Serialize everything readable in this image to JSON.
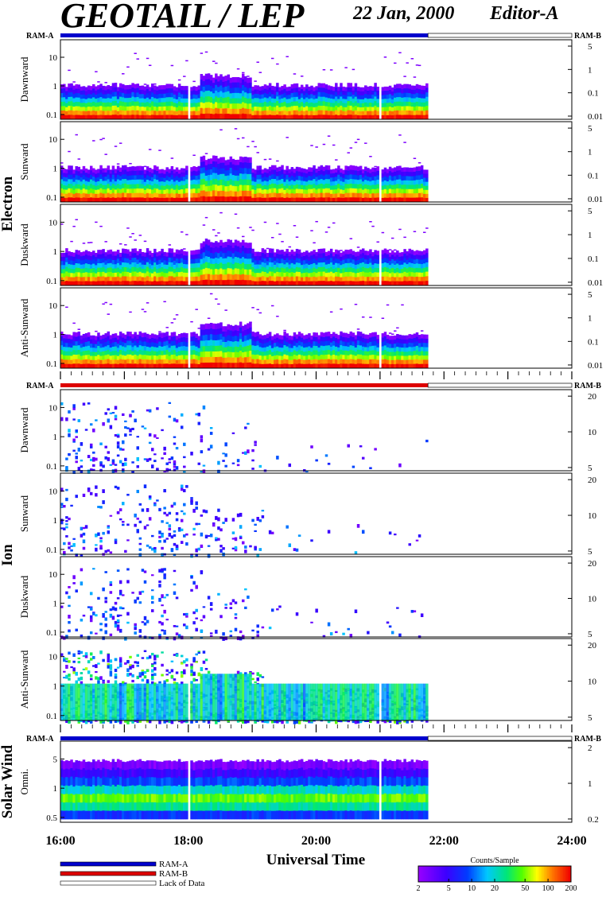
{
  "header": {
    "title": "GEOTAIL / LEP",
    "date": "22 Jan, 2000",
    "editor": "Editor-A"
  },
  "mode_labels": {
    "left": "RAM-A",
    "right": "RAM-B"
  },
  "groups": [
    {
      "name": "Electron",
      "panels": [
        {
          "label": "Dawnward",
          "y_ticks": [
            "10",
            "1",
            "0.1"
          ],
          "right_ticks": [
            "5",
            "1",
            "0.1",
            "0.01"
          ]
        },
        {
          "label": "Sunward",
          "y_ticks": [
            "10",
            "1",
            "0.1"
          ],
          "right_ticks": [
            "5",
            "1",
            "0.1",
            "0.01"
          ]
        },
        {
          "label": "Duskward",
          "y_ticks": [
            "10",
            "1",
            "0.1"
          ],
          "right_ticks": [
            "5",
            "1",
            "0.1",
            "0.01"
          ]
        },
        {
          "label": "Anti-Sunward",
          "y_ticks": [
            "10",
            "1",
            "0.1"
          ],
          "right_ticks": [
            "5",
            "1",
            "0.1",
            "0.01"
          ]
        }
      ]
    },
    {
      "name": "Ion",
      "panels": [
        {
          "label": "Dawnward",
          "y_ticks": [
            "10",
            "1",
            "0.1"
          ],
          "right_ticks": [
            "20",
            "10",
            "5"
          ]
        },
        {
          "label": "Sunward",
          "y_ticks": [
            "10",
            "1",
            "0.1"
          ],
          "right_ticks": [
            "20",
            "10",
            "5"
          ]
        },
        {
          "label": "Duskward",
          "y_ticks": [
            "10",
            "1",
            "0.1"
          ],
          "right_ticks": [
            "20",
            "10",
            "5"
          ]
        },
        {
          "label": "Anti-Sunward",
          "y_ticks": [
            "10",
            "1",
            "0.1"
          ],
          "right_ticks": [
            "20",
            "10",
            "5"
          ]
        }
      ]
    },
    {
      "name": "Solar Wind",
      "panels": [
        {
          "label": "Omni.",
          "y_ticks": [
            "5",
            "1",
            "0.5"
          ],
          "right_ticks": [
            "2",
            "1",
            "0.2"
          ]
        }
      ]
    }
  ],
  "chart_data": {
    "type": "heatmap",
    "xlabel": "Universal Time",
    "x_ticks": [
      "16:00",
      "18:00",
      "20:00",
      "22:00",
      "24:00"
    ],
    "x_range_hours": [
      16,
      24
    ],
    "data_end_hour": 21.75,
    "data_gaps_hours": [
      18.0,
      21.0
    ],
    "mode_bars": [
      {
        "group": "Electron",
        "mode": "RAM-A"
      },
      {
        "group": "Ion",
        "mode": "RAM-B"
      },
      {
        "group": "Solar Wind",
        "mode": "RAM-A"
      }
    ],
    "colorbar": {
      "title": "Counts/Sample",
      "ticks": [
        "2",
        "5",
        "10",
        "20",
        "50",
        "100",
        "200"
      ],
      "range": [
        2,
        200
      ],
      "scale": "log"
    },
    "legend": [
      {
        "label": "RAM-A",
        "color": "#0000cc"
      },
      {
        "label": "RAM-B",
        "color": "#dd0000"
      },
      {
        "label": "Lack of Data",
        "color": "#ffffff"
      }
    ]
  },
  "colors": {
    "ram_a": "#0000cc",
    "ram_b": "#dd0000"
  }
}
